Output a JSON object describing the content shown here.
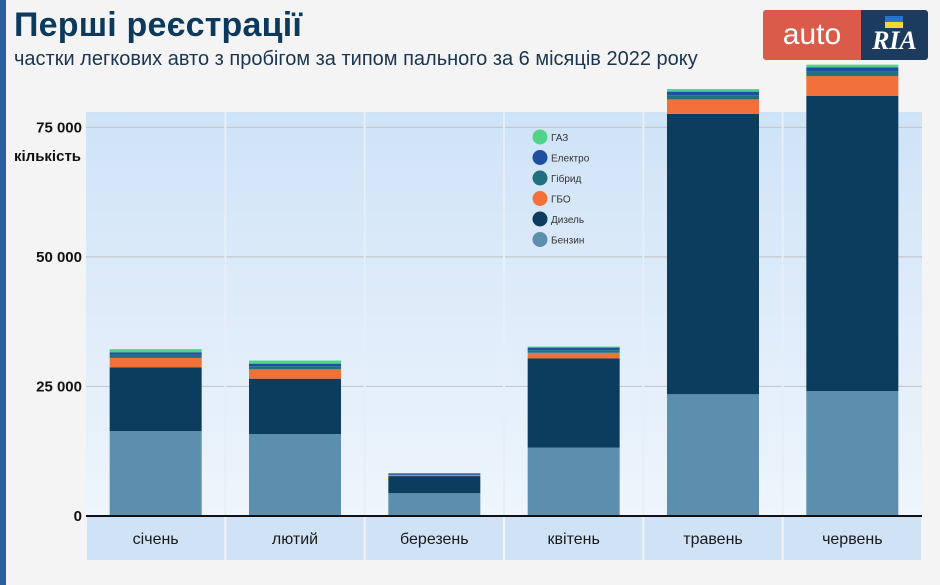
{
  "header": {
    "title": "Перші реєстрації",
    "subtitle": "частки легкових авто з пробігом за типом пального за 6 місяців 2022 року"
  },
  "logo": {
    "left_text": "auto",
    "right_text": "RIA"
  },
  "colors": {
    "plot_bg_top": "#cfe3f7",
    "plot_bg_bottom": "#eef5fc",
    "xband": "#cfe2f6",
    "title": "#0b3a5c",
    "brand_red": "#db5b4a",
    "brand_navy": "#1b3c5e"
  },
  "chart_data": {
    "type": "bar",
    "stacked": true,
    "title": "Перші реєстрації",
    "subtitle": "частки легкових авто з пробігом за типом пального за 6 місяців 2022 року",
    "xlabel": "",
    "ylabel": "кількість",
    "ylim": [
      0,
      88000
    ],
    "yticks": [
      0,
      25000,
      50000,
      75000
    ],
    "ytick_labels": [
      "0",
      "25 000",
      "50 000",
      "75 000"
    ],
    "categories": [
      "січень",
      "лютий",
      "березень",
      "квітень",
      "травень",
      "червень"
    ],
    "series": [
      {
        "name": "Бензин",
        "color": "#5b8fad",
        "values": [
          16400,
          15800,
          4400,
          13200,
          23500,
          24100
        ]
      },
      {
        "name": "Дизель",
        "color": "#0c3d5e",
        "values": [
          12300,
          10700,
          3300,
          17200,
          54100,
          57000
        ]
      },
      {
        "name": "ГБО",
        "color": "#f2713a",
        "values": [
          1800,
          1800,
          180,
          1100,
          2800,
          3800
        ]
      },
      {
        "name": "Гібрид",
        "color": "#1f7180",
        "values": [
          600,
          600,
          160,
          500,
          800,
          900
        ]
      },
      {
        "name": "Електро",
        "color": "#1f4fa0",
        "values": [
          500,
          500,
          150,
          500,
          700,
          800
        ]
      },
      {
        "name": "ГАЗ",
        "color": "#52d38a",
        "values": [
          600,
          600,
          110,
          200,
          500,
          500
        ]
      }
    ],
    "legend_order": [
      "ГАЗ",
      "Електро",
      "Гібрид",
      "ГБО",
      "Дизель",
      "Бензин"
    ],
    "legend_position": "top-center",
    "grid": true
  }
}
